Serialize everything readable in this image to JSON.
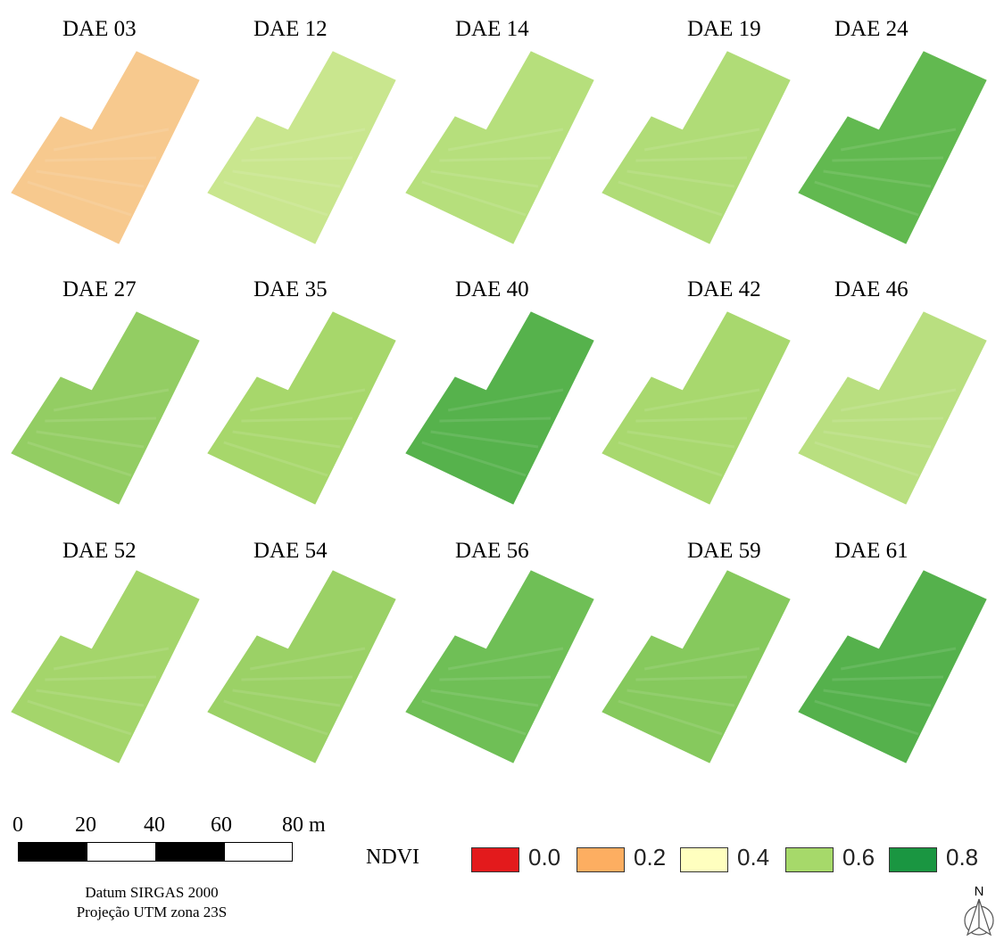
{
  "panels": [
    {
      "label": "DAE 03",
      "color": "#f7c98e"
    },
    {
      "label": "DAE 12",
      "color": "#c9e68e"
    },
    {
      "label": "DAE 14",
      "color": "#b6df7c"
    },
    {
      "label": "DAE 19",
      "color": "#b0dc77"
    },
    {
      "label": "DAE 24",
      "color": "#62b950"
    },
    {
      "label": "DAE 27",
      "color": "#93cd63"
    },
    {
      "label": "DAE 35",
      "color": "#a7d76b"
    },
    {
      "label": "DAE 40",
      "color": "#56b24c"
    },
    {
      "label": "DAE 42",
      "color": "#a8d86e"
    },
    {
      "label": "DAE 46",
      "color": "#b9df80"
    },
    {
      "label": "DAE 52",
      "color": "#a4d56b"
    },
    {
      "label": "DAE 54",
      "color": "#9bd166"
    },
    {
      "label": "DAE 56",
      "color": "#6fbf56"
    },
    {
      "label": "DAE 59",
      "color": "#86c95d"
    },
    {
      "label": "DAE 61",
      "color": "#55b14c"
    }
  ],
  "scale_bar": {
    "ticks": [
      "0",
      "20",
      "40",
      "60",
      "80 m"
    ]
  },
  "datum": {
    "line1": "Datum SIRGAS 2000",
    "line2": "Projeção UTM zona 23S"
  },
  "legend": {
    "title": "NDVI",
    "items": [
      {
        "value": "0.0",
        "color": "#e31a1c"
      },
      {
        "value": "0.2",
        "color": "#fdae61"
      },
      {
        "value": "0.4",
        "color": "#ffffbf"
      },
      {
        "value": "0.6",
        "color": "#a6d96a"
      },
      {
        "value": "0.8",
        "color": "#1a9641"
      }
    ]
  },
  "north_arrow": {
    "label": "N"
  }
}
